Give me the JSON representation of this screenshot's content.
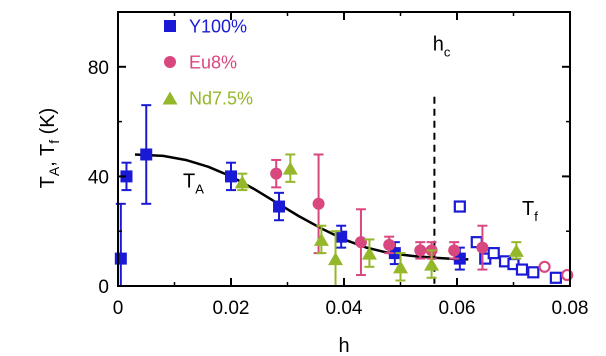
{
  "chart_data": {
    "type": "scatter",
    "xlabel": "h",
    "ylabel": {
      "main": "T",
      "sub1": "A",
      "sep": ", T",
      "sub2": "f",
      "unit": " (K)"
    },
    "xlim": [
      0,
      0.08
    ],
    "ylim": [
      0,
      100
    ],
    "xticks": [
      "0",
      "0.02",
      "0.04",
      "0.06",
      "0.08"
    ],
    "xtick_values": [
      0,
      0.02,
      0.04,
      0.06,
      0.08
    ],
    "yticks": [
      "0",
      "40",
      "80"
    ],
    "ytick_values": [
      0,
      40,
      80
    ],
    "legend_position": "top-left",
    "series": [
      {
        "name": "Y100%",
        "color": "#1a1ad6",
        "marker": "square",
        "points": [
          {
            "x": 0.0005,
            "y": 10,
            "err": 20
          },
          {
            "x": 0.0015,
            "y": 40,
            "err": 5
          },
          {
            "x": 0.005,
            "y": 48,
            "err": 18
          },
          {
            "x": 0.02,
            "y": 40,
            "err": 5
          },
          {
            "x": 0.0285,
            "y": 29,
            "err": 5
          },
          {
            "x": 0.0395,
            "y": 18,
            "err": 4
          },
          {
            "x": 0.049,
            "y": 12,
            "err": 4
          },
          {
            "x": 0.0605,
            "y": 10,
            "err": 4
          }
        ],
        "open_points": [
          {
            "x": 0.0605,
            "y": 29
          },
          {
            "x": 0.0635,
            "y": 16
          },
          {
            "x": 0.065,
            "y": 10
          },
          {
            "x": 0.0665,
            "y": 12
          },
          {
            "x": 0.0685,
            "y": 9
          },
          {
            "x": 0.07,
            "y": 8
          },
          {
            "x": 0.0715,
            "y": 6
          },
          {
            "x": 0.0735,
            "y": 5
          },
          {
            "x": 0.0775,
            "y": 3
          }
        ]
      },
      {
        "name": "Eu8%",
        "color": "#d9477f",
        "marker": "circle",
        "points": [
          {
            "x": 0.028,
            "y": 41,
            "err": 5
          },
          {
            "x": 0.0355,
            "y": 30,
            "err": 18
          },
          {
            "x": 0.043,
            "y": 16,
            "err": 12
          },
          {
            "x": 0.048,
            "y": 15,
            "err": 3
          },
          {
            "x": 0.0535,
            "y": 13,
            "err": 3
          },
          {
            "x": 0.0555,
            "y": 13,
            "err": 3
          },
          {
            "x": 0.0595,
            "y": 13,
            "err": 3
          },
          {
            "x": 0.0645,
            "y": 14,
            "err": 8
          }
        ],
        "open_points": [
          {
            "x": 0.0755,
            "y": 7
          },
          {
            "x": 0.0795,
            "y": 4
          }
        ]
      },
      {
        "name": "Nd7.5%",
        "color": "#94b82a",
        "marker": "triangle",
        "points": [
          {
            "x": 0.022,
            "y": 38,
            "err": 3
          },
          {
            "x": 0.0305,
            "y": 43,
            "err": 5
          },
          {
            "x": 0.036,
            "y": 17,
            "err": 5
          },
          {
            "x": 0.0385,
            "y": 10,
            "err": 10
          },
          {
            "x": 0.0445,
            "y": 12,
            "err": 5
          },
          {
            "x": 0.05,
            "y": 7,
            "err": 5
          },
          {
            "x": 0.0555,
            "y": 8,
            "err": 5
          },
          {
            "x": 0.0705,
            "y": 13,
            "err": 3
          }
        ]
      }
    ],
    "fit_curve": {
      "label": "T_A",
      "points": [
        [
          0.003,
          48
        ],
        [
          0.008,
          47.5
        ],
        [
          0.012,
          46
        ],
        [
          0.016,
          43.5
        ],
        [
          0.02,
          40
        ],
        [
          0.024,
          35.5
        ],
        [
          0.028,
          30.5
        ],
        [
          0.032,
          25.5
        ],
        [
          0.036,
          21
        ],
        [
          0.04,
          17
        ],
        [
          0.044,
          14
        ],
        [
          0.048,
          12
        ],
        [
          0.052,
          11
        ],
        [
          0.056,
          10.3
        ],
        [
          0.06,
          9.8
        ],
        [
          0.062,
          9.7
        ]
      ]
    },
    "hc": {
      "x": 0.056,
      "ymax": 80
    },
    "annotations": [
      {
        "text": "T",
        "sub": "A",
        "x": 0.0115,
        "y": 36
      },
      {
        "text": "h",
        "sub": "c",
        "x": 0.0557,
        "y": 86
      },
      {
        "text": "T",
        "sub": "f",
        "x": 0.0715,
        "y": 26
      }
    ]
  }
}
